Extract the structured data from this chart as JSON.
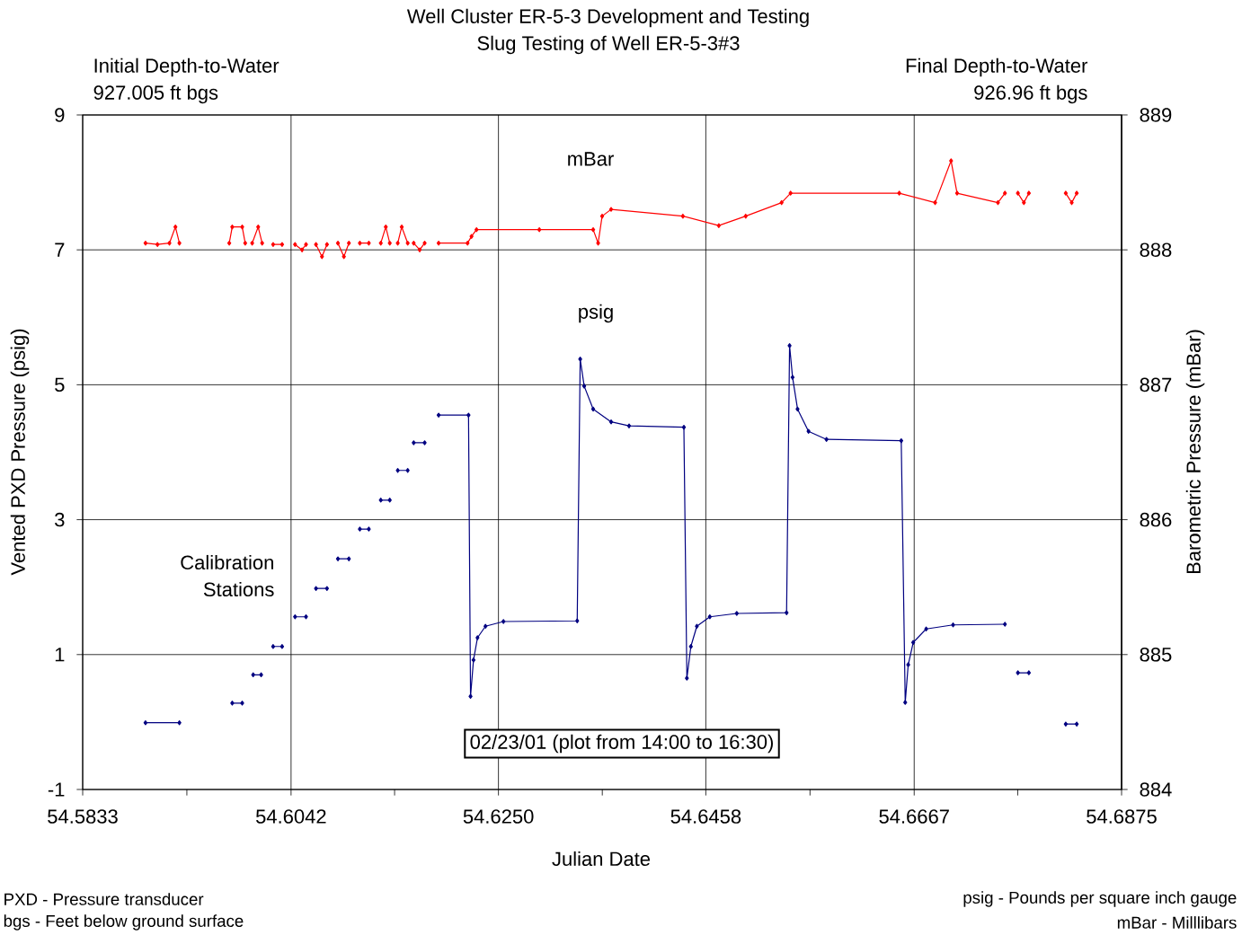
{
  "chart_data": {
    "type": "line",
    "title": "Well Cluster ER-5-3 Development and Testing",
    "subtitle": "Slug Testing of Well ER-5-3#3",
    "xlabel": "Julian Date",
    "ylabel": "Vented PXD Pressure (psig)",
    "y2label": "Barometric Pressure (mBar)",
    "xlim": [
      54.5833,
      54.6875
    ],
    "xticks": [
      54.5833,
      {
        "value": 54.59375,
        "label": null
      },
      54.6042,
      {
        "value": 54.614583,
        "label": null
      },
      {
        "value": 54.625,
        "label": "54.6250"
      },
      {
        "value": 54.635417,
        "label": null
      },
      54.6458,
      {
        "value": 54.65625,
        "label": null
      },
      54.6667,
      {
        "value": 54.677083,
        "label": null
      },
      54.6875
    ],
    "ylim": [
      -1,
      9
    ],
    "yticks": [
      -1,
      1,
      3,
      5,
      7,
      9
    ],
    "y2lim": [
      884,
      889
    ],
    "y2ticks": [
      884,
      885,
      886,
      887,
      888,
      889
    ],
    "grid": true,
    "legend": false,
    "marker": "diamond",
    "annotations": [
      "Initial Depth-to-Water",
      "927.005 ft bgs",
      "Final Depth-to-Water",
      "926.96 ft bgs",
      "Calibration",
      "Stations",
      "02/23/01 (plot from 14:00 to 16:30)",
      "PXD -  Pressure transducer",
      "bgs - Feet below ground surface",
      "psig - Pounds per square inch gauge",
      "mBar - Milllibars"
    ],
    "series": [
      {
        "name": "mBar",
        "color": "#ff0000",
        "axis": "y2",
        "x": [
          54.5896,
          54.5908,
          54.592,
          54.5926,
          54.593,
          54.5956,
          54.598,
          54.5983,
          54.5993,
          54.5996,
          54.5999,
          54.6003,
          54.6009,
          54.6013,
          54.6018,
          54.6024,
          54.6033,
          54.604,
          54.6046,
          54.6053,
          54.6057,
          54.6062,
          54.6067,
          54.6073,
          54.6078,
          54.6084,
          54.6089,
          54.6095,
          54.61,
          54.6106,
          54.6111,
          54.612,
          54.6126,
          54.6132,
          54.6137,
          54.6141,
          54.6145,
          54.6149,
          54.6153,
          54.6159,
          54.6162,
          54.6165,
          54.6171,
          54.6176,
          54.6183,
          54.619,
          54.6219,
          54.6223,
          54.6228,
          54.6291,
          54.6345,
          54.635,
          54.6354,
          54.6363,
          54.6435,
          54.6471,
          54.6498,
          54.6534,
          54.6543,
          54.6652,
          54.6688,
          54.6704,
          54.671,
          54.6751,
          54.6758,
          54.6765,
          54.6771,
          54.6777,
          54.6782,
          54.68,
          54.6819,
          54.6825,
          54.683
        ],
        "values": [
          888.05,
          888.04,
          888.05,
          888.17,
          888.05,
          null,
          888.05,
          888.17,
          888.17,
          888.05,
          null,
          888.05,
          888.17,
          888.05,
          null,
          888.04,
          888.04,
          null,
          888.04,
          888.0,
          888.04,
          null,
          888.04,
          887.95,
          888.04,
          null,
          888.05,
          887.95,
          888.05,
          null,
          888.05,
          888.05,
          null,
          888.05,
          888.17,
          888.05,
          null,
          888.05,
          888.17,
          888.05,
          null,
          888.05,
          888.0,
          888.05,
          null,
          888.05,
          888.05,
          888.1,
          888.15,
          888.15,
          888.15,
          888.05,
          888.25,
          888.3,
          888.25,
          888.18,
          888.25,
          888.35,
          888.42,
          888.42,
          888.35,
          888.66,
          888.42,
          888.35,
          888.42,
          null,
          888.42,
          888.35,
          888.42,
          null,
          888.42,
          888.35,
          888.42
        ]
      },
      {
        "name": "psig",
        "color": "#000080",
        "x": [
          54.5896,
          54.593,
          54.5956,
          54.5983,
          54.5993,
          54.5998,
          54.6004,
          54.6012,
          54.6018,
          54.6024,
          54.6033,
          54.604,
          54.6046,
          54.6057,
          54.6062,
          54.6067,
          54.6078,
          54.6084,
          54.6089,
          54.61,
          54.6106,
          54.6111,
          54.612,
          54.6126,
          54.6132,
          54.6141,
          54.6145,
          54.6149,
          54.6159,
          54.6162,
          54.6165,
          54.6176,
          54.6183,
          54.619,
          54.622,
          54.6222,
          54.6225,
          54.6229,
          54.6237,
          54.6255,
          54.6329,
          54.6332,
          54.6336,
          54.6345,
          54.6363,
          54.6381,
          54.6436,
          54.6439,
          54.6443,
          54.6449,
          54.6462,
          54.6489,
          54.6539,
          54.6542,
          54.6545,
          54.655,
          54.6561,
          54.6579,
          54.6654,
          54.6658,
          54.6661,
          54.6666,
          54.6679,
          54.6706,
          54.6758,
          54.6765,
          54.6771,
          54.6782,
          54.68,
          54.6819,
          54.683
        ],
        "values": [
          -0.01,
          -0.01,
          null,
          0.28,
          0.28,
          null,
          0.7,
          0.7,
          null,
          1.12,
          1.12,
          null,
          1.56,
          1.56,
          null,
          1.98,
          1.98,
          null,
          2.42,
          2.42,
          null,
          2.86,
          2.86,
          null,
          3.29,
          3.29,
          null,
          3.73,
          3.73,
          null,
          4.14,
          4.14,
          null,
          4.55,
          4.55,
          0.38,
          0.92,
          1.25,
          1.42,
          1.49,
          1.5,
          5.38,
          4.98,
          4.64,
          4.45,
          4.39,
          4.37,
          0.65,
          1.12,
          1.42,
          1.56,
          1.61,
          1.62,
          5.58,
          5.11,
          4.64,
          4.31,
          4.19,
          4.17,
          0.29,
          0.85,
          1.18,
          1.38,
          1.44,
          1.45,
          null,
          0.73,
          0.73,
          null,
          -0.03,
          -0.03
        ]
      }
    ]
  }
}
